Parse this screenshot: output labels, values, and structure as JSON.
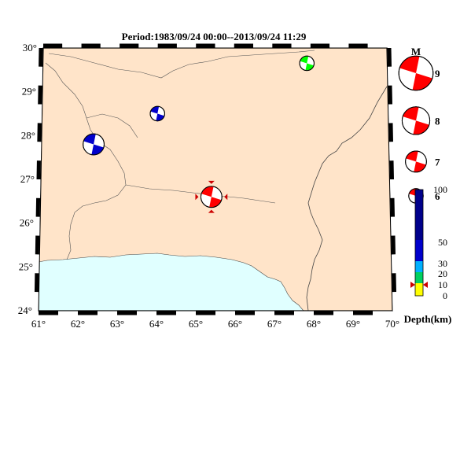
{
  "title": "Period:1983/09/24 00:00--2013/09/24 11:29",
  "colors": {
    "land": "#ffe4c9",
    "sea": "#e0ffff",
    "compression": "#ff0000",
    "beachball_blue": "#0000cc",
    "beachball_green": "#00ff00",
    "marker": "#cc0000"
  },
  "axes": {
    "lon_ticks": [
      "61°",
      "62°",
      "63°",
      "64°",
      "65°",
      "66°",
      "67°",
      "68°",
      "69°",
      "70°"
    ],
    "lat_ticks": [
      "24°",
      "25°",
      "26°",
      "27°",
      "28°",
      "29°",
      "30°"
    ]
  },
  "events": [
    {
      "id": "ev1",
      "lon": 62.35,
      "lat": 27.8,
      "mag": 7,
      "color": "beachball_blue",
      "highlight": false
    },
    {
      "id": "ev2",
      "lon": 64.0,
      "lat": 28.5,
      "mag": 6,
      "color": "beachball_blue",
      "highlight": false
    },
    {
      "id": "ev3",
      "lon": 67.9,
      "lat": 29.65,
      "mag": 6,
      "color": "beachball_green",
      "highlight": false
    },
    {
      "id": "ev4",
      "lon": 65.4,
      "lat": 26.6,
      "mag": 7,
      "color": "compression",
      "highlight": true
    }
  ],
  "magnitude_legend": {
    "heading": "M",
    "items": [
      {
        "label": "9",
        "mag": 9
      },
      {
        "label": "8",
        "mag": 8
      },
      {
        "label": "7",
        "mag": 7
      },
      {
        "label": "6",
        "mag": 6
      }
    ]
  },
  "depth_scale": {
    "label": "Depth(km)",
    "ticks": [
      "100",
      "50",
      "30",
      "20",
      "10",
      "0"
    ],
    "colors": [
      "#00008b",
      "#0000cc",
      "#00b0ff",
      "#00d060",
      "#ffff00"
    ],
    "current_marker_km": 10
  }
}
